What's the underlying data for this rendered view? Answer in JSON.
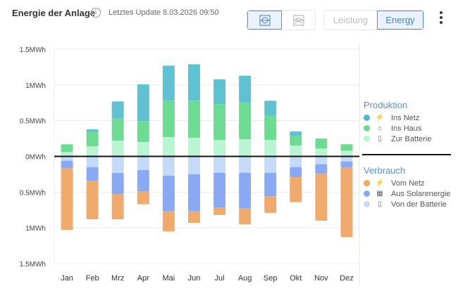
{
  "header": {
    "title": "Energie der Anlage",
    "info_icon": "i",
    "last_update": "Letztes Update 8.03.2026 09:50",
    "view_buttons": [
      "bar-view-icon",
      "stacked-view-icon"
    ],
    "mode_tabs": [
      "Leistung",
      "Energy"
    ],
    "active_mode": "Energy",
    "menu_icon": "more-vertical-icon"
  },
  "legend": {
    "production_title": "Produktion",
    "production": [
      {
        "label": "Ins Netz",
        "icon": "power-tower-icon",
        "color": "#4fb8c9"
      },
      {
        "label": "Ins Haus",
        "icon": "house-icon",
        "color": "#6ddc93"
      },
      {
        "label": "Zur Batterie",
        "icon": "battery-icon",
        "color": "#b8f5d0"
      }
    ],
    "consumption_title": "Verbrauch",
    "consumption": [
      {
        "label": "Vom Netz",
        "icon": "power-tower-icon",
        "color": "#f0a860"
      },
      {
        "label": "Aus Solarenergie",
        "icon": "solar-panel-icon",
        "color": "#8aa9f5"
      },
      {
        "label": "Von der Batterie",
        "icon": "battery-icon",
        "color": "#c4daf8"
      }
    ]
  },
  "chart_data": {
    "type": "bar",
    "stacked": true,
    "categories": [
      "Jan",
      "Feb",
      "Mrz",
      "Apr",
      "Mai",
      "Jun",
      "Jul",
      "Aug",
      "Sep",
      "Okt",
      "Nov",
      "Dez"
    ],
    "yticks": [
      "1.5MWh",
      "1MWh",
      "0.5MWh",
      "0MWh",
      "0.5MWh",
      "1MWh",
      "1.5MWh"
    ],
    "ylim": [
      -1.5,
      1.5
    ],
    "unit": "MWh",
    "grid": true,
    "legend_position": "right",
    "series": [
      {
        "name": "Zur Batterie",
        "group": "Produktion",
        "values": [
          0.06,
          0.14,
          0.22,
          0.2,
          0.27,
          0.26,
          0.23,
          0.24,
          0.23,
          0.15,
          0.11,
          0.08
        ]
      },
      {
        "name": "Ins Haus",
        "group": "Produktion",
        "values": [
          0.11,
          0.2,
          0.31,
          0.29,
          0.51,
          0.52,
          0.5,
          0.51,
          0.34,
          0.14,
          0.13,
          0.09
        ]
      },
      {
        "name": "Ins Netz",
        "group": "Produktion",
        "values": [
          0,
          0.04,
          0.24,
          0.52,
          0.49,
          0.51,
          0.35,
          0.38,
          0.21,
          0.06,
          0.01,
          0
        ]
      },
      {
        "name": "Von der Batterie",
        "group": "Verbrauch",
        "values": [
          -0.06,
          -0.15,
          -0.23,
          -0.19,
          -0.27,
          -0.25,
          -0.23,
          -0.23,
          -0.23,
          -0.15,
          -0.11,
          -0.07
        ]
      },
      {
        "name": "Aus Solarenergie",
        "group": "Verbrauch",
        "values": [
          -0.11,
          -0.19,
          -0.3,
          -0.3,
          -0.5,
          -0.52,
          -0.49,
          -0.5,
          -0.33,
          -0.14,
          -0.13,
          -0.09
        ]
      },
      {
        "name": "Vom Netz",
        "group": "Verbrauch",
        "values": [
          -0.86,
          -0.54,
          -0.35,
          -0.18,
          -0.28,
          -0.16,
          -0.1,
          -0.22,
          -0.23,
          -0.35,
          -0.66,
          -0.97
        ]
      }
    ]
  }
}
